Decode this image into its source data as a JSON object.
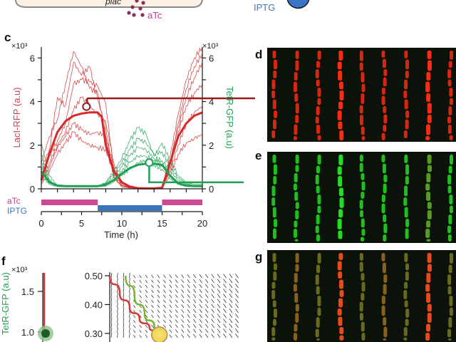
{
  "top_fragment": {
    "label_plac": "plac",
    "label_atc": "aTc",
    "label_iptg": "IPTG",
    "colors": {
      "atc": "#c0408c",
      "iptg": "#3a78c0",
      "box_fill": "#fdf1e6",
      "box_stroke": "#8a8a8a",
      "dot": "#8a2c5c"
    }
  },
  "panels": {
    "c": "c",
    "d": "d",
    "e": "e",
    "f": "f",
    "g": "g"
  },
  "chart_data": [
    {
      "id": "c",
      "type": "line",
      "title": "",
      "xlabel": "Time (h)",
      "ylabel_left": "LacI-RFP (a.u)",
      "ylabel_right": "TetR-GFP (a.u)",
      "y_scale_label_left": "×10³",
      "y_scale_label_right": "×10³",
      "xlim": [
        0,
        20
      ],
      "ylim": [
        0,
        6.5
      ],
      "x_ticks": [
        0,
        5,
        10,
        15,
        20
      ],
      "x_minor_ticks": [
        2,
        4,
        6,
        8,
        12,
        14,
        16,
        18
      ],
      "y_ticks_left": [
        0,
        2,
        4,
        6
      ],
      "y_ticks_right": [
        0,
        2,
        4,
        6
      ],
      "grid": false,
      "colors": {
        "rfp": "#d42a2a",
        "gfp": "#1fa055",
        "rfp_marker_line": "#9b1c1c"
      },
      "inducer_bars": [
        {
          "label": "aTc",
          "color": "#cc4a92",
          "intervals": [
            [
              0,
              7
            ],
            [
              15,
              20
            ]
          ]
        },
        {
          "label": "IPTG",
          "color": "#3a74bd",
          "intervals": [
            [
              7,
              15
            ]
          ]
        }
      ],
      "series": [
        {
          "name": "LacI-RFP model",
          "x": [
            0,
            1,
            2,
            3,
            4,
            5,
            6,
            7,
            7.5,
            8,
            9,
            10,
            11,
            12,
            13,
            14,
            15,
            16,
            17,
            18,
            19,
            20
          ],
          "y": [
            0.4,
            1.6,
            2.6,
            3.1,
            3.35,
            3.45,
            3.5,
            3.5,
            3.3,
            2.0,
            0.8,
            0.3,
            0.1,
            0.03,
            0.02,
            0.02,
            0.05,
            1.2,
            2.4,
            3.0,
            3.35,
            3.5
          ]
        },
        {
          "name": "TetR-GFP model",
          "x": [
            0,
            1,
            2,
            3,
            4,
            5,
            6,
            7,
            8,
            9,
            10,
            11,
            12,
            13,
            14,
            15,
            16,
            17,
            18,
            19,
            20
          ],
          "y": [
            0.8,
            0.3,
            0.15,
            0.12,
            0.12,
            0.12,
            0.12,
            0.12,
            0.2,
            0.4,
            0.7,
            0.95,
            1.1,
            1.15,
            1.15,
            1.1,
            0.6,
            0.25,
            0.15,
            0.12,
            0.12
          ]
        },
        {
          "name": "LacI-RFP trace 1",
          "x": [
            0,
            1,
            2,
            3,
            4,
            5,
            6,
            7,
            8,
            9,
            10,
            11,
            12,
            13,
            14,
            15,
            16,
            17,
            18,
            19,
            20
          ],
          "y": [
            1.2,
            2.4,
            3.2,
            4.8,
            6.3,
            5.6,
            4.6,
            4.4,
            2.4,
            0.6,
            0.1,
            0.05,
            0.03,
            0.02,
            0.02,
            0.05,
            1.5,
            3.4,
            5.0,
            6.0,
            6.5
          ]
        },
        {
          "name": "LacI-RFP trace 2",
          "x": [
            0,
            1,
            2,
            3,
            4,
            5,
            6,
            7,
            8,
            9,
            10,
            11,
            12,
            13,
            14,
            15,
            16,
            17,
            18,
            19,
            20
          ],
          "y": [
            0.9,
            1.8,
            4.2,
            3.8,
            5.8,
            5.2,
            5.6,
            4.1,
            2.8,
            0.5,
            0.1,
            0.04,
            0.02,
            0.02,
            0.02,
            0.05,
            1.1,
            3.0,
            4.6,
            5.6,
            6.2
          ]
        },
        {
          "name": "LacI-RFP trace 3",
          "x": [
            0,
            1,
            2,
            3,
            4,
            5,
            6,
            7,
            8,
            9,
            10,
            11,
            12,
            13,
            14,
            15,
            16,
            17,
            18,
            19,
            20
          ],
          "y": [
            0.6,
            1.5,
            2.2,
            3.0,
            4.8,
            5.0,
            4.9,
            4.7,
            3.9,
            0.9,
            0.2,
            0.05,
            0.03,
            0.02,
            0.02,
            0.06,
            1.3,
            2.8,
            4.2,
            5.1,
            5.8
          ]
        },
        {
          "name": "LacI-RFP trace 4",
          "x": [
            0,
            1,
            2,
            3,
            4,
            5,
            6,
            7,
            8,
            9,
            10,
            11,
            12,
            13,
            14,
            15,
            16,
            17,
            18,
            19,
            20
          ],
          "y": [
            0.4,
            1.2,
            2.0,
            2.6,
            3.6,
            4.2,
            3.8,
            3.4,
            3.1,
            1.2,
            0.3,
            0.08,
            0.03,
            0.02,
            0.02,
            0.05,
            0.9,
            2.6,
            3.8,
            4.4,
            4.8
          ]
        },
        {
          "name": "LacI-RFP trace 5",
          "x": [
            0,
            1,
            2,
            3,
            4,
            5,
            6,
            7,
            8,
            9,
            10,
            11,
            12,
            13,
            14,
            15,
            16,
            17,
            18,
            19,
            20
          ],
          "y": [
            0.3,
            1.0,
            1.9,
            2.4,
            3.0,
            2.7,
            2.5,
            2.6,
            2.4,
            1.0,
            0.25,
            0.06,
            0.03,
            0.02,
            0.02,
            0.04,
            0.8,
            2.0,
            3.0,
            3.5,
            3.8
          ]
        },
        {
          "name": "LacI-RFP trace 6",
          "x": [
            0,
            1,
            2,
            3,
            4,
            5,
            6,
            7,
            8,
            9,
            10,
            11,
            12,
            13,
            14,
            15,
            16,
            17,
            18,
            19,
            20
          ],
          "y": [
            0.2,
            0.8,
            1.6,
            2.1,
            2.6,
            2.2,
            2.0,
            1.9,
            1.8,
            0.7,
            0.15,
            0.05,
            0.02,
            0.02,
            0.02,
            0.03,
            0.6,
            1.6,
            2.1,
            2.3,
            2.5
          ]
        },
        {
          "name": "TetR-GFP trace 1",
          "x": [
            0,
            1,
            2,
            3,
            4,
            5,
            6,
            7,
            8,
            9,
            10,
            11,
            12,
            13,
            14,
            15,
            16,
            17,
            18,
            19,
            20
          ],
          "y": [
            2.1,
            0.6,
            0.15,
            0.1,
            0.1,
            0.1,
            0.1,
            0.1,
            0.3,
            0.8,
            1.4,
            2.2,
            2.8,
            2.5,
            1.5,
            2.1,
            1.3,
            0.6,
            0.3,
            0.2,
            0.2
          ]
        },
        {
          "name": "TetR-GFP trace 2",
          "x": [
            0,
            1,
            2,
            3,
            4,
            5,
            6,
            7,
            8,
            9,
            10,
            11,
            12,
            13,
            14,
            15,
            16,
            17,
            18,
            19,
            20
          ],
          "y": [
            1.6,
            0.4,
            0.12,
            0.1,
            0.1,
            0.1,
            0.1,
            0.1,
            0.25,
            0.7,
            1.2,
            1.8,
            2.3,
            2.1,
            1.6,
            1.7,
            1.0,
            0.5,
            0.25,
            0.15,
            0.15
          ]
        },
        {
          "name": "TetR-GFP trace 3",
          "x": [
            0,
            1,
            2,
            3,
            4,
            5,
            6,
            7,
            8,
            9,
            10,
            11,
            12,
            13,
            14,
            15,
            16,
            17,
            18,
            19,
            20
          ],
          "y": [
            1.2,
            0.35,
            0.12,
            0.1,
            0.1,
            0.1,
            0.1,
            0.1,
            0.2,
            0.55,
            1.0,
            1.5,
            1.9,
            1.8,
            1.4,
            1.3,
            0.8,
            0.4,
            0.2,
            0.12,
            0.12
          ]
        },
        {
          "name": "TetR-GFP trace 4",
          "x": [
            0,
            1,
            2,
            3,
            4,
            5,
            6,
            7,
            8,
            9,
            10,
            11,
            12,
            13,
            14,
            15,
            16,
            17,
            18,
            19,
            20
          ],
          "y": [
            0.9,
            0.3,
            0.1,
            0.1,
            0.1,
            0.1,
            0.1,
            0.1,
            0.15,
            0.4,
            0.8,
            1.2,
            1.5,
            1.5,
            1.3,
            1.1,
            0.6,
            0.3,
            0.15,
            0.1,
            0.1
          ]
        },
        {
          "name": "TetR-GFP trace 5",
          "x": [
            0,
            1,
            2,
            3,
            4,
            5,
            6,
            7,
            8,
            9,
            10,
            11,
            12,
            13,
            14,
            15,
            16,
            17,
            18,
            19,
            20
          ],
          "y": [
            0.6,
            0.2,
            0.1,
            0.1,
            0.1,
            0.1,
            0.1,
            0.1,
            0.12,
            0.3,
            0.6,
            0.9,
            1.2,
            1.3,
            1.1,
            0.9,
            0.45,
            0.2,
            0.1,
            0.1,
            0.1
          ]
        }
      ],
      "markers": [
        {
          "name": "RFP snapshot marker",
          "x": 5.6,
          "y": 3.8,
          "hline_y": 4.15,
          "links_to": "d"
        },
        {
          "name": "GFP snapshot marker",
          "x": 13.4,
          "y": 1.2,
          "hline_y": 0.3,
          "links_to": "e"
        }
      ]
    },
    {
      "id": "f-left",
      "type": "scatter",
      "ylabel": "TetR-GFP (a.u)",
      "y_scale_label": "×10³",
      "y_ticks": [
        1.0,
        1.5
      ],
      "ylim": [
        0.95,
        1.75
      ],
      "colors": {
        "line": "#d43a3a",
        "point": "#1a5c22",
        "halo": "#8fbf8f"
      },
      "points": [
        {
          "name": "steady state",
          "y": 1.0
        }
      ]
    },
    {
      "id": "f-right",
      "type": "line",
      "y_ticks": [
        0.3,
        0.4,
        0.5
      ],
      "ylim": [
        0.28,
        0.5
      ],
      "colors": {
        "red_nullcline": "#d43a3a",
        "green_nullcline": "#7ab530",
        "fixed_point": "#f2d24a",
        "arrows": "#222222"
      },
      "series": [
        {
          "name": "red nullcline",
          "x": [
            0,
            0.1,
            0.2,
            0.3,
            0.4,
            0.5
          ],
          "y": [
            0.5,
            0.44,
            0.39,
            0.35,
            0.32,
            0.3
          ]
        },
        {
          "name": "green nullcline",
          "x": [
            0.16,
            0.25,
            0.35,
            0.45,
            0.5
          ],
          "y": [
            0.5,
            0.43,
            0.37,
            0.32,
            0.3
          ]
        }
      ],
      "fixed_point": {
        "x": 0.5,
        "y": 0.3
      }
    }
  ],
  "images": [
    {
      "panel": "d",
      "channel": "RFP",
      "tint": "#ff2a10",
      "lanes": 9
    },
    {
      "panel": "e",
      "channel": "GFP",
      "tint": "#22e020",
      "lanes": 9
    },
    {
      "panel": "g",
      "channel": "merge",
      "tint": "#b07018",
      "lanes": 9
    }
  ]
}
